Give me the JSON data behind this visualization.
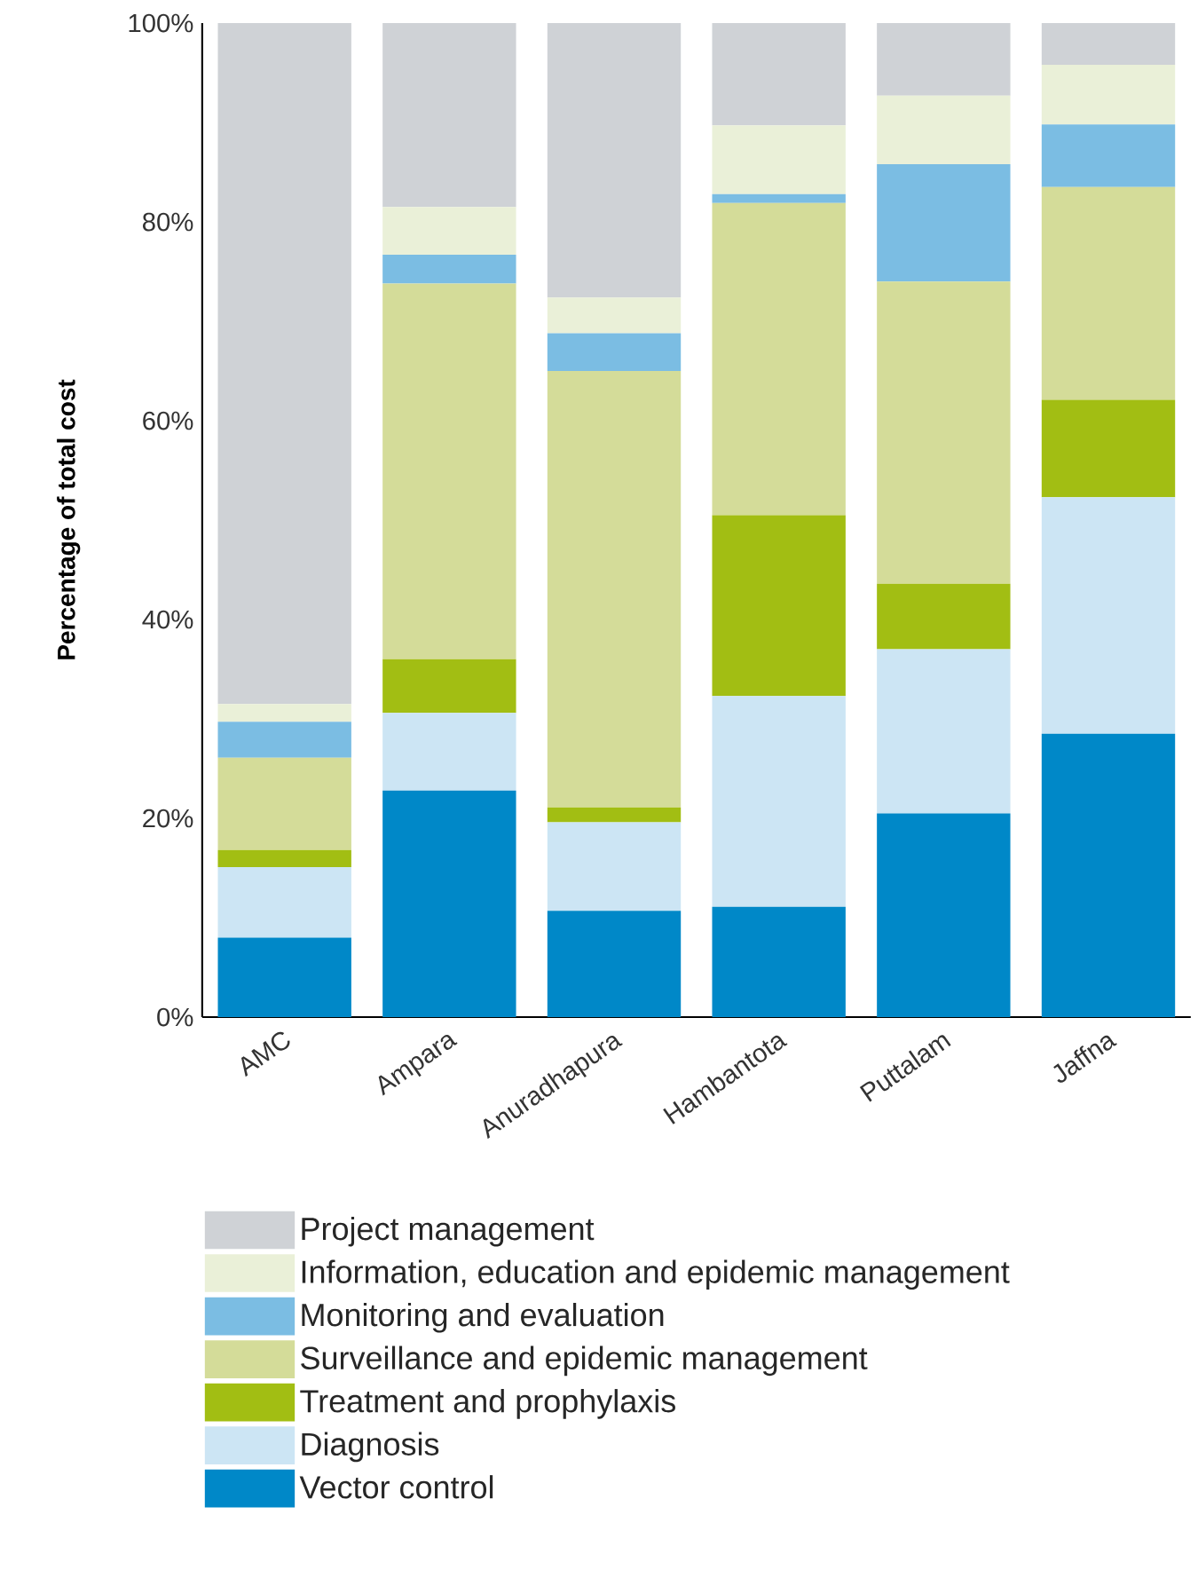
{
  "chart_data": {
    "type": "bar",
    "stacked": true,
    "ylabel": "Percentage of total cost",
    "categories": [
      "AMC",
      "Ampara",
      "Anuradhapura",
      "Hambantota",
      "Puttalam",
      "Jaffna"
    ],
    "ylim": [
      0,
      100
    ],
    "yticks": [
      {
        "value": 0,
        "label": "0%"
      },
      {
        "value": 20,
        "label": "20%"
      },
      {
        "value": 40,
        "label": "40%"
      },
      {
        "value": 60,
        "label": "60%"
      },
      {
        "value": 80,
        "label": "80%"
      },
      {
        "value": 100,
        "label": "100%"
      }
    ],
    "legend": "bottom",
    "series": [
      {
        "name": "Vector control",
        "color": "#0088c8",
        "values": [
          8.0,
          22.8,
          10.7,
          11.1,
          20.5,
          28.5
        ]
      },
      {
        "name": "Diagnosis",
        "color": "#cce5f4",
        "values": [
          7.1,
          7.8,
          8.9,
          21.2,
          16.5,
          23.8
        ]
      },
      {
        "name": "Treatment and prophylaxis",
        "color": "#a2be13",
        "values": [
          1.7,
          5.4,
          1.5,
          18.2,
          6.6,
          9.8
        ]
      },
      {
        "name": "Surveillance and epidemic management",
        "color": "#d4dc99",
        "values": [
          9.3,
          37.8,
          43.9,
          31.4,
          30.4,
          21.4
        ]
      },
      {
        "name": "Monitoring and evaluation",
        "color": "#7bbde3",
        "values": [
          3.6,
          2.9,
          3.8,
          0.9,
          11.8,
          6.3
        ]
      },
      {
        "name": "Information, education and epidemic management",
        "color": "#eaf0d8",
        "values": [
          1.8,
          4.8,
          3.6,
          6.9,
          6.9,
          6.0
        ]
      },
      {
        "name": "Project management",
        "color": "#cfd2d6",
        "values": [
          68.5,
          18.5,
          27.6,
          10.3,
          7.3,
          4.2
        ]
      }
    ]
  }
}
